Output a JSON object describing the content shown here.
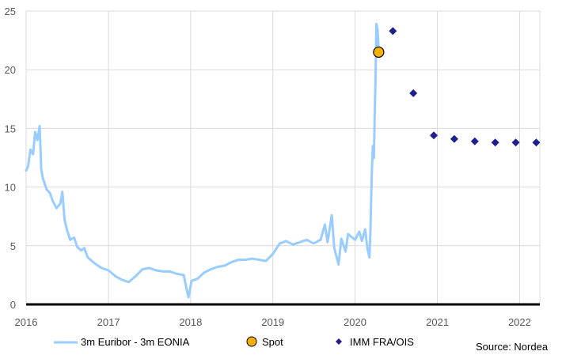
{
  "chart_data": {
    "type": "line",
    "title": "",
    "xlabel": "",
    "ylabel": "",
    "x_ticks": [
      "2016",
      "2017",
      "2018",
      "2019",
      "2020",
      "2021",
      "2022"
    ],
    "y_ticks": [
      "0",
      "5",
      "10",
      "15",
      "20",
      "25"
    ],
    "xlim": [
      "2016-01-01",
      "2022-04-01"
    ],
    "ylim": [
      0,
      25
    ],
    "grid": true,
    "legend_position": "bottom",
    "colors": {
      "line": "#99CCFF",
      "spot": "#F5B000",
      "imm": "#1F1F8F",
      "grid": "#D9D9D9",
      "axis": "#000000"
    },
    "series": [
      {
        "name": "3m Euribor - 3m EONIA",
        "style": "line",
        "points": [
          [
            "2016-01-01",
            11.4
          ],
          [
            "2016-01-10",
            11.8
          ],
          [
            "2016-01-20",
            13.2
          ],
          [
            "2016-02-01",
            12.8
          ],
          [
            "2016-02-10",
            14.7
          ],
          [
            "2016-02-20",
            14.0
          ],
          [
            "2016-03-01",
            15.2
          ],
          [
            "2016-03-08",
            11.5
          ],
          [
            "2016-03-15",
            10.8
          ],
          [
            "2016-04-01",
            9.8
          ],
          [
            "2016-04-15",
            9.5
          ],
          [
            "2016-05-01",
            8.7
          ],
          [
            "2016-05-15",
            8.2
          ],
          [
            "2016-06-01",
            8.6
          ],
          [
            "2016-06-10",
            9.6
          ],
          [
            "2016-06-20",
            7.2
          ],
          [
            "2016-07-01",
            6.3
          ],
          [
            "2016-07-15",
            5.5
          ],
          [
            "2016-08-01",
            5.7
          ],
          [
            "2016-08-15",
            4.9
          ],
          [
            "2016-09-01",
            4.6
          ],
          [
            "2016-09-15",
            4.8
          ],
          [
            "2016-10-01",
            4.0
          ],
          [
            "2016-11-01",
            3.5
          ],
          [
            "2016-12-01",
            3.1
          ],
          [
            "2017-01-01",
            2.9
          ],
          [
            "2017-02-01",
            2.4
          ],
          [
            "2017-03-01",
            2.1
          ],
          [
            "2017-04-01",
            1.9
          ],
          [
            "2017-05-01",
            2.4
          ],
          [
            "2017-06-01",
            3.0
          ],
          [
            "2017-07-01",
            3.1
          ],
          [
            "2017-08-01",
            2.9
          ],
          [
            "2017-09-01",
            2.8
          ],
          [
            "2017-10-01",
            2.8
          ],
          [
            "2017-11-01",
            2.6
          ],
          [
            "2017-12-01",
            2.5
          ],
          [
            "2017-12-15",
            1.2
          ],
          [
            "2017-12-22",
            0.6
          ],
          [
            "2018-01-05",
            2.0
          ],
          [
            "2018-02-01",
            2.2
          ],
          [
            "2018-03-01",
            2.7
          ],
          [
            "2018-04-01",
            3.0
          ],
          [
            "2018-05-01",
            3.2
          ],
          [
            "2018-06-01",
            3.3
          ],
          [
            "2018-07-01",
            3.6
          ],
          [
            "2018-08-01",
            3.8
          ],
          [
            "2018-09-01",
            3.8
          ],
          [
            "2018-10-01",
            3.9
          ],
          [
            "2018-11-01",
            3.8
          ],
          [
            "2018-12-01",
            3.7
          ],
          [
            "2019-01-01",
            4.3
          ],
          [
            "2019-02-01",
            5.2
          ],
          [
            "2019-03-01",
            5.4
          ],
          [
            "2019-04-01",
            5.1
          ],
          [
            "2019-05-01",
            5.3
          ],
          [
            "2019-06-01",
            5.5
          ],
          [
            "2019-07-01",
            5.2
          ],
          [
            "2019-08-01",
            5.5
          ],
          [
            "2019-08-20",
            6.8
          ],
          [
            "2019-09-01",
            5.3
          ],
          [
            "2019-09-20",
            7.6
          ],
          [
            "2019-10-01",
            4.8
          ],
          [
            "2019-10-20",
            3.4
          ],
          [
            "2019-11-01",
            5.6
          ],
          [
            "2019-11-20",
            4.5
          ],
          [
            "2019-12-01",
            6.0
          ],
          [
            "2020-01-01",
            5.5
          ],
          [
            "2020-01-20",
            6.2
          ],
          [
            "2020-02-01",
            5.4
          ],
          [
            "2020-02-15",
            6.4
          ],
          [
            "2020-02-25",
            4.8
          ],
          [
            "2020-03-05",
            4.0
          ],
          [
            "2020-03-10",
            6.5
          ],
          [
            "2020-03-15",
            11.0
          ],
          [
            "2020-03-20",
            13.5
          ],
          [
            "2020-03-25",
            12.5
          ],
          [
            "2020-03-28",
            16.0
          ],
          [
            "2020-04-01",
            19.0
          ],
          [
            "2020-04-05",
            23.9
          ],
          [
            "2020-04-10",
            23.5
          ],
          [
            "2020-04-15",
            21.7
          ]
        ]
      },
      {
        "name": "Spot",
        "style": "marker-circle",
        "points": [
          [
            "2020-04-15",
            21.5
          ]
        ]
      },
      {
        "name": "IMM FRA/OIS",
        "style": "marker-diamond",
        "points": [
          [
            "2020-06-17",
            23.3
          ],
          [
            "2020-09-16",
            18.0
          ],
          [
            "2020-12-16",
            14.4
          ],
          [
            "2021-03-17",
            14.1
          ],
          [
            "2021-06-16",
            13.9
          ],
          [
            "2021-09-15",
            13.8
          ],
          [
            "2021-12-15",
            13.8
          ],
          [
            "2022-03-16",
            13.8
          ]
        ]
      }
    ],
    "source": "Source: Nordea"
  }
}
